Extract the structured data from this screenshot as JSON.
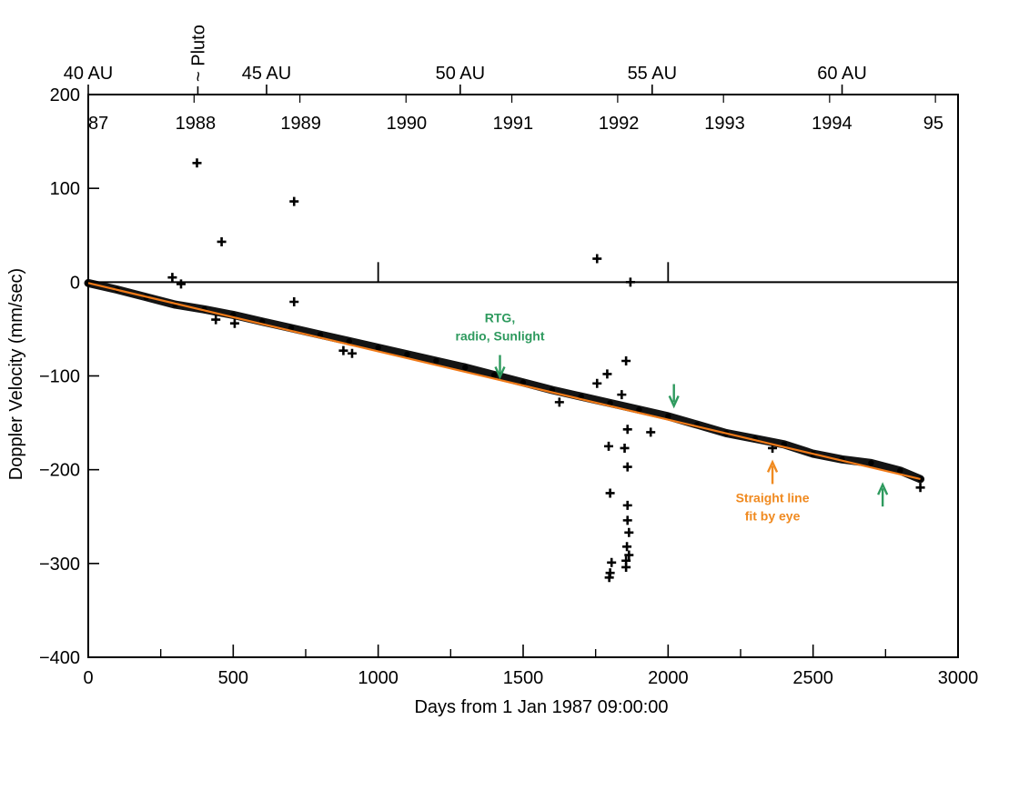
{
  "chart_data": {
    "type": "scatter",
    "title": "",
    "xlabel": "Days from 1 Jan 1987  09:00:00",
    "ylabel": "Doppler Velocity (mm/sec)",
    "xlim": [
      0,
      3000
    ],
    "ylim": [
      -400,
      200
    ],
    "x_ticks": [
      0,
      500,
      1000,
      1500,
      2000,
      2500,
      3000
    ],
    "x_tick_labels": [
      "0",
      "500",
      "1000",
      "1500",
      "2000",
      "2500",
      "3000"
    ],
    "y_ticks": [
      200,
      100,
      0,
      -100,
      -200,
      -300,
      -400
    ],
    "y_tick_labels": [
      "200",
      "100",
      "0",
      "−100",
      "−200",
      "−300",
      "−400"
    ],
    "top_axis_distance": {
      "ticks": [
        {
          "day": 0,
          "label": "40 AU"
        },
        {
          "day": 615,
          "label": "45 AU"
        },
        {
          "day": 1283,
          "label": "50 AU"
        },
        {
          "day": 1945,
          "label": "55 AU"
        },
        {
          "day": 2600,
          "label": "60 AU"
        }
      ],
      "pluto_day": 378,
      "pluto_label": "~ Pluto"
    },
    "year_labels": [
      {
        "day": 35,
        "label": "87"
      },
      {
        "day": 370,
        "label": "1988"
      },
      {
        "day": 733,
        "label": "1989"
      },
      {
        "day": 1098,
        "label": "1990"
      },
      {
        "day": 1465,
        "label": "1991"
      },
      {
        "day": 1830,
        "label": "1992"
      },
      {
        "day": 2195,
        "label": "1993"
      },
      {
        "day": 2565,
        "label": "1994"
      },
      {
        "day": 2915,
        "label": "95"
      }
    ],
    "year_divisions_upper": [
      1000,
      2000
    ],
    "zero_line": 0,
    "series": [
      {
        "name": "Doppler residuals",
        "style": "dense band",
        "color": "#000000",
        "points": [
          [
            0,
            -1
          ],
          [
            100,
            -8
          ],
          [
            200,
            -16
          ],
          [
            300,
            -24
          ],
          [
            400,
            -29
          ],
          [
            500,
            -35
          ],
          [
            600,
            -42
          ],
          [
            700,
            -49
          ],
          [
            800,
            -56
          ],
          [
            900,
            -63
          ],
          [
            1000,
            -70
          ],
          [
            1100,
            -77
          ],
          [
            1200,
            -84
          ],
          [
            1300,
            -91
          ],
          [
            1400,
            -99
          ],
          [
            1500,
            -107
          ],
          [
            1600,
            -115
          ],
          [
            1700,
            -122
          ],
          [
            1800,
            -129
          ],
          [
            1900,
            -136
          ],
          [
            2000,
            -143
          ],
          [
            2100,
            -152
          ],
          [
            2200,
            -161
          ],
          [
            2300,
            -167
          ],
          [
            2400,
            -173
          ],
          [
            2500,
            -183
          ],
          [
            2600,
            -189
          ],
          [
            2700,
            -193
          ],
          [
            2800,
            -201
          ],
          [
            2870,
            -210
          ]
        ]
      },
      {
        "name": "Outliers",
        "style": "plus markers",
        "color": "#000000",
        "points": [
          [
            375,
            127
          ],
          [
            460,
            43
          ],
          [
            710,
            86
          ],
          [
            290,
            5
          ],
          [
            320,
            -2
          ],
          [
            710,
            -21
          ],
          [
            440,
            -40
          ],
          [
            505,
            -44
          ],
          [
            880,
            -73
          ],
          [
            910,
            -76
          ],
          [
            1625,
            -128
          ],
          [
            1755,
            -108
          ],
          [
            1790,
            -98
          ],
          [
            1755,
            25
          ],
          [
            1870,
            0
          ],
          [
            1840,
            -120
          ],
          [
            1855,
            -84
          ],
          [
            1860,
            -157
          ],
          [
            1850,
            -177
          ],
          [
            1795,
            -175
          ],
          [
            1860,
            -197
          ],
          [
            1800,
            -225
          ],
          [
            1860,
            -238
          ],
          [
            1860,
            -254
          ],
          [
            1865,
            -267
          ],
          [
            1858,
            -282
          ],
          [
            1865,
            -291
          ],
          [
            1855,
            -297
          ],
          [
            1855,
            -304
          ],
          [
            1805,
            -299
          ],
          [
            1800,
            -310
          ],
          [
            1797,
            -315
          ],
          [
            1940,
            -160
          ],
          [
            2360,
            -177
          ],
          [
            2870,
            -219
          ]
        ]
      },
      {
        "name": "Straight line fit by eye",
        "style": "line",
        "color": "#f07a18",
        "points": [
          [
            0,
            -1
          ],
          [
            2870,
            -210
          ]
        ]
      }
    ],
    "annotations": [
      {
        "lines": [
          "RTG,",
          "radio, Sunlight"
        ],
        "color": "#2e9a5e",
        "x": 1420,
        "y": -101,
        "arrow": "down"
      },
      {
        "lines": [],
        "color": "#2e9a5e",
        "x": 2020,
        "y": -132,
        "arrow": "down"
      },
      {
        "lines": [
          "Straight line",
          "fit by eye"
        ],
        "color": "#f08a20",
        "x": 2360,
        "y": -192,
        "arrow": "up"
      },
      {
        "lines": [],
        "color": "#2e9a5e",
        "x": 2740,
        "y": -216,
        "arrow": "up"
      }
    ],
    "grid": false,
    "legend": "none"
  }
}
